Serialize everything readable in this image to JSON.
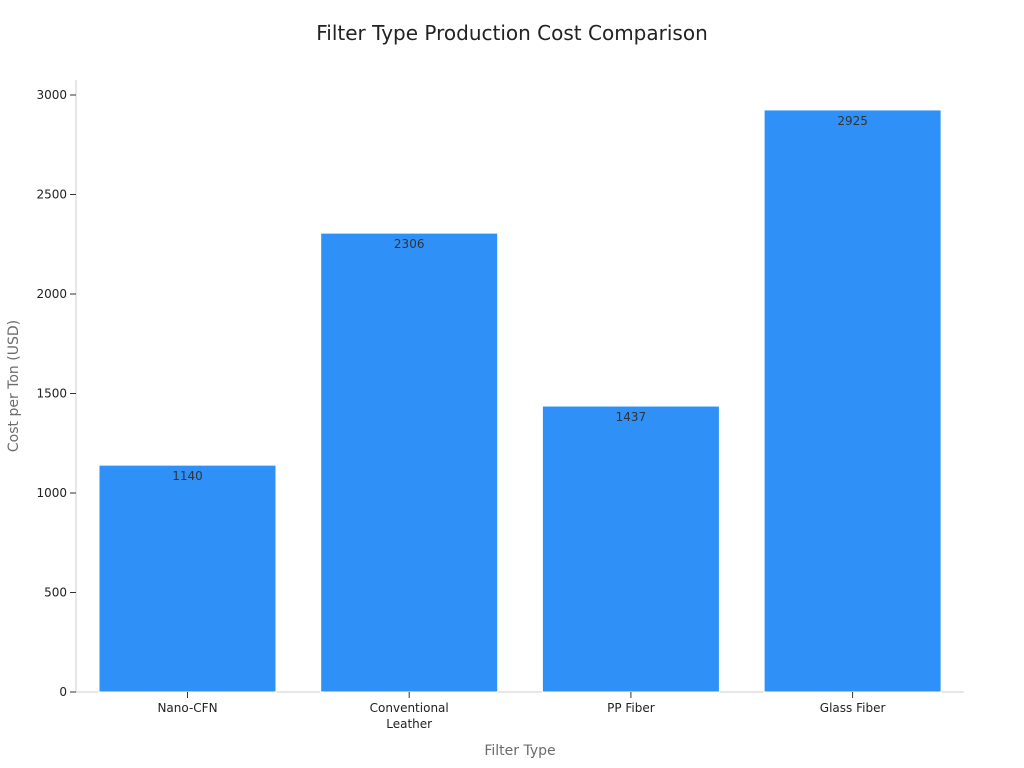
{
  "chart_data": {
    "type": "bar",
    "title": "Filter Type Production Cost Comparison",
    "xlabel": "Filter Type",
    "ylabel": "Cost per Ton (USD)",
    "categories": [
      "Nano-CFN",
      "Conventional Leather",
      "PP Fiber",
      "Glass Fiber"
    ],
    "category_label_lines": [
      [
        "Nano-CFN"
      ],
      [
        "Conventional",
        "Leather"
      ],
      [
        "PP Fiber"
      ],
      [
        "Glass Fiber"
      ]
    ],
    "values": [
      1140,
      2306,
      1437,
      2925
    ],
    "data_labels": [
      "1140",
      "2306",
      "1437",
      "2925"
    ],
    "ylim": [
      0,
      3000
    ],
    "yticks": [
      0,
      500,
      1000,
      1500,
      2000,
      2500,
      3000
    ],
    "grid": false,
    "legend": "none",
    "bar_color": "#2f91f8",
    "bar_edge_color": "#ffffff"
  }
}
